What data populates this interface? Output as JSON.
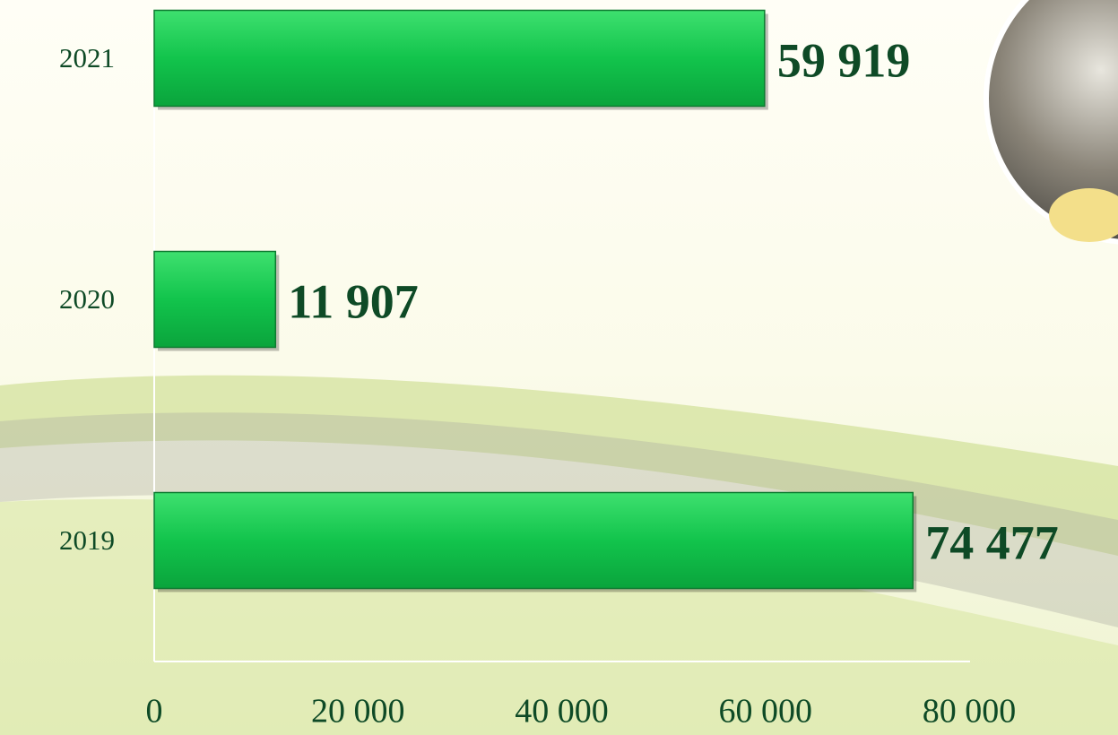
{
  "chart_data": {
    "type": "bar",
    "orientation": "horizontal",
    "categories": [
      "2021",
      "2020",
      "2019"
    ],
    "values": [
      59919,
      11907,
      74477
    ],
    "value_labels": [
      "59 919",
      "11 907",
      "74 477"
    ],
    "color": "#19c24d",
    "xlim": [
      0,
      80000
    ],
    "xticks": [
      0,
      {
        "value": 20000,
        "label": "20 000"
      },
      {
        "value": 40000,
        "label": "40 000"
      },
      {
        "value": 60000,
        "label": "60 000"
      },
      {
        "value": 80000,
        "label": "80 000"
      }
    ],
    "grid": false
  }
}
